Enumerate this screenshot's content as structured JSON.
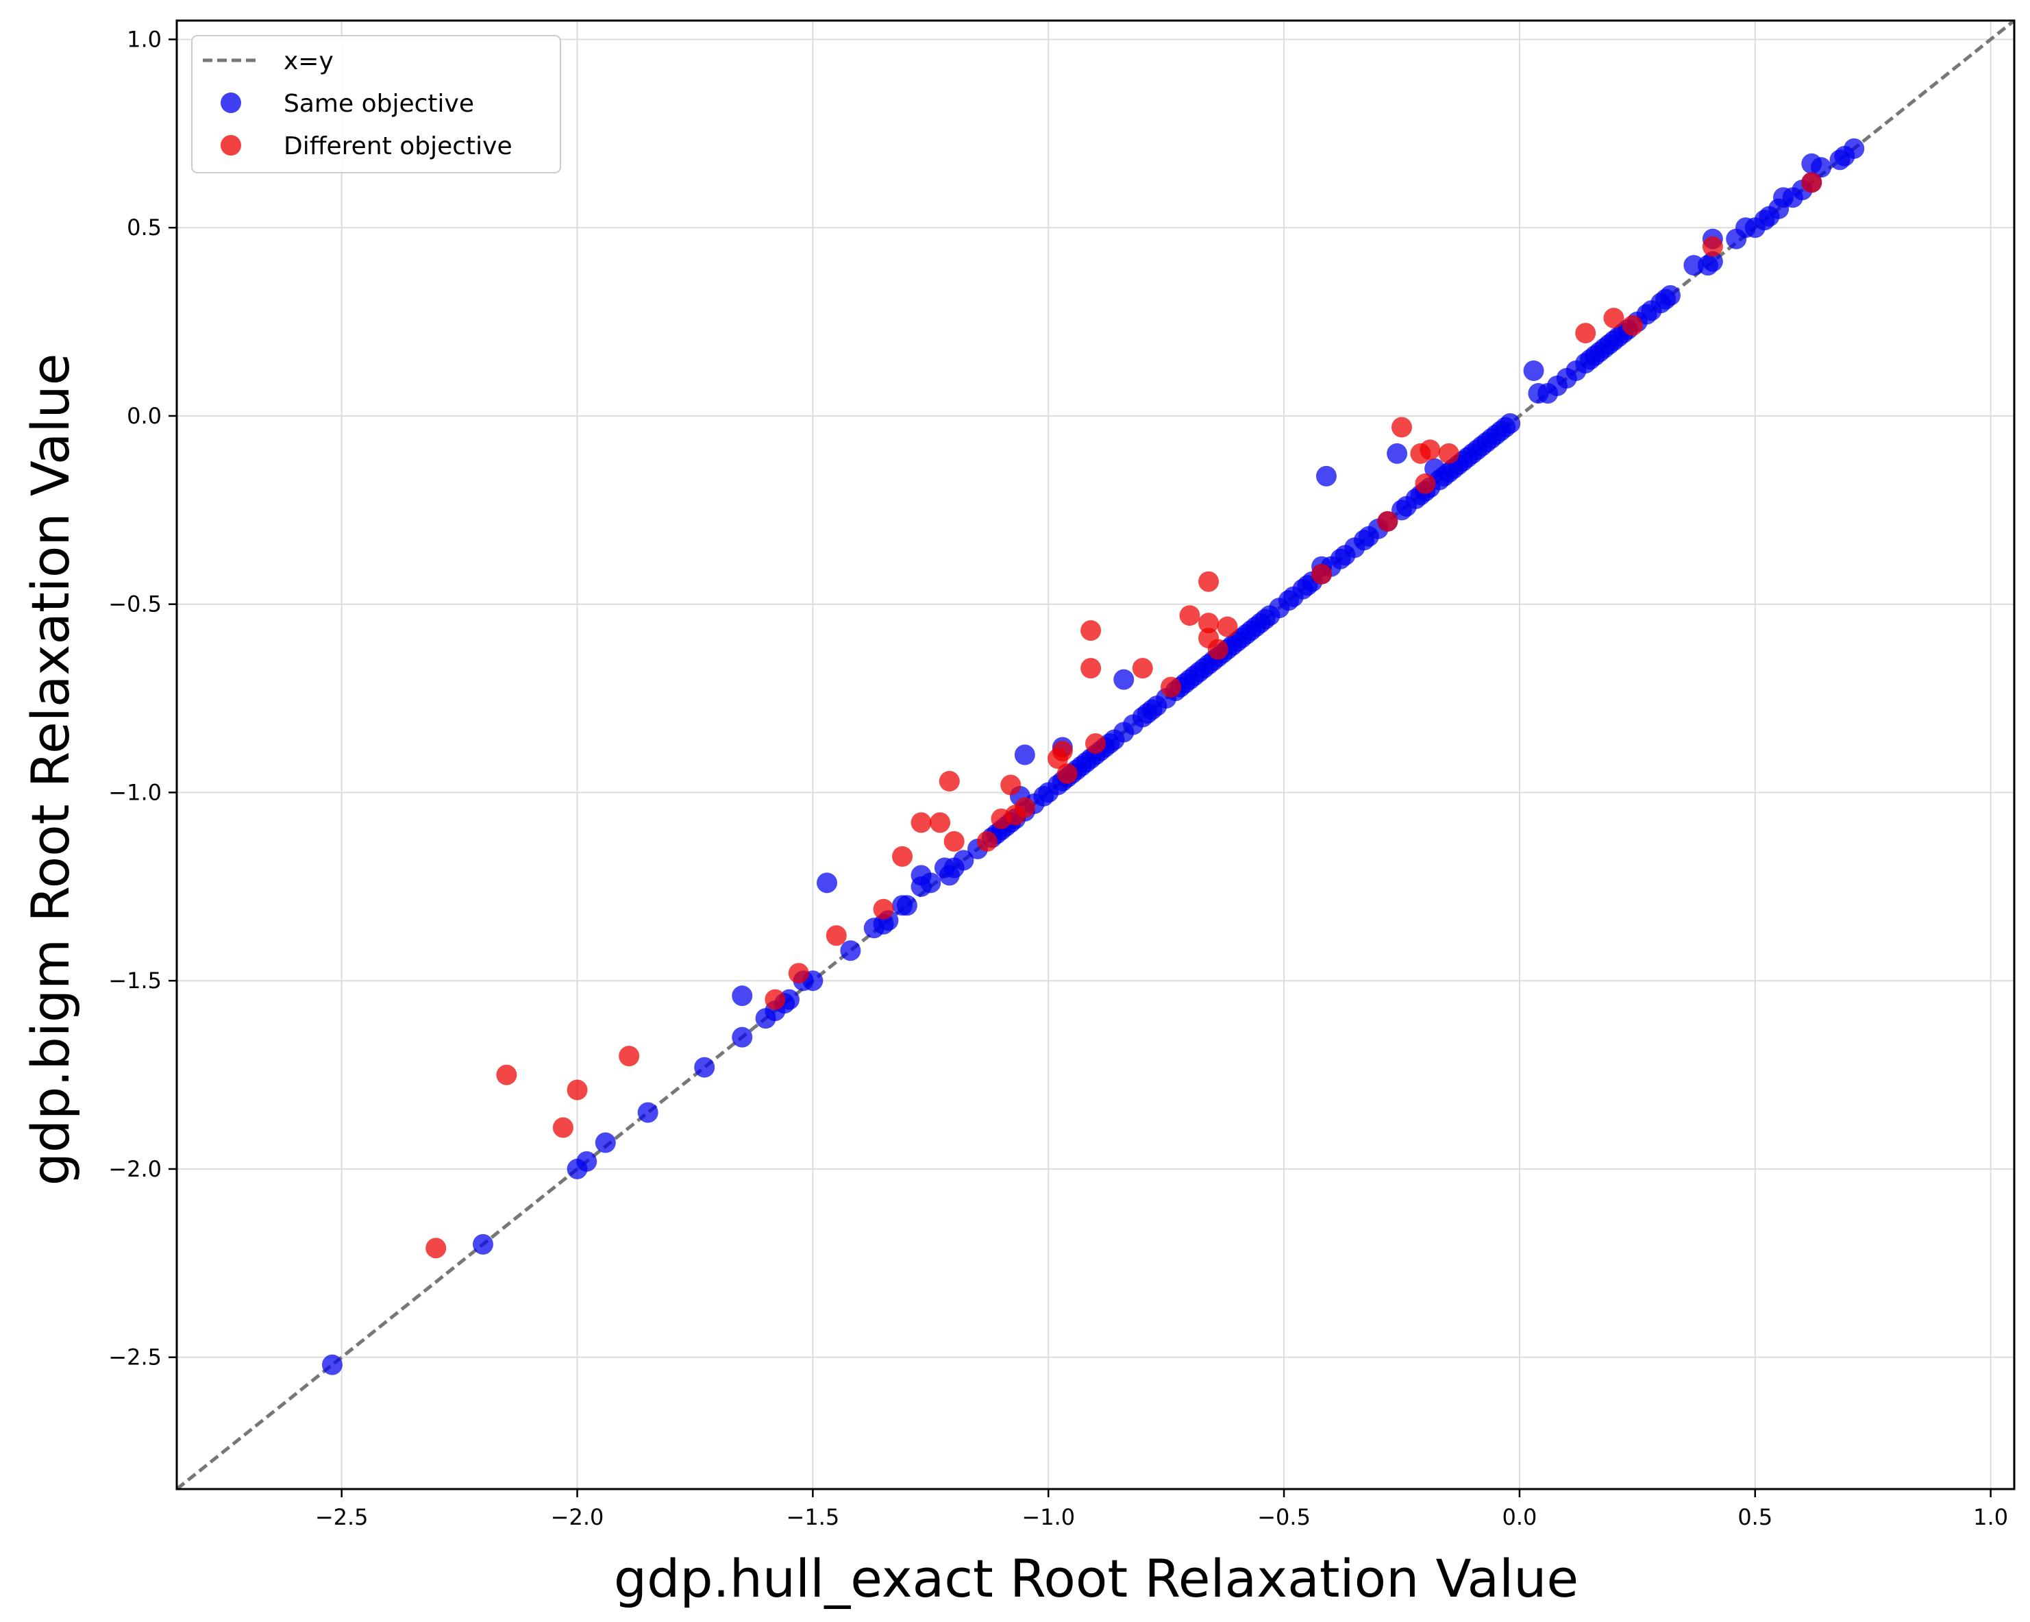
{
  "chart_data": {
    "type": "scatter",
    "xlabel": "gdp.hull_exact Root Relaxation Value",
    "ylabel": "gdp.bigm Root Relaxation Value",
    "xlim": [
      -2.85,
      1.05
    ],
    "ylim": [
      -2.85,
      1.05
    ],
    "xticks": [
      -2.5,
      -2.0,
      -1.5,
      -1.0,
      -0.5,
      0.0,
      0.5,
      1.0
    ],
    "yticks": [
      -2.5,
      -2.0,
      -1.5,
      -1.0,
      -0.5,
      0.0,
      0.5,
      1.0
    ],
    "xtick_labels": [
      "−2.5",
      "−2.0",
      "−1.5",
      "−1.0",
      "−0.5",
      "0.0",
      "0.5",
      "1.0"
    ],
    "ytick_labels": [
      "−2.5",
      "−2.0",
      "−1.5",
      "−1.0",
      "−0.5",
      "0.0",
      "0.5",
      "1.0"
    ],
    "grid": true,
    "legend_position": "top-left",
    "reference_line": {
      "name": "x=y",
      "style": "dashed",
      "color": "#777777"
    },
    "series": [
      {
        "name": "Same objective",
        "color": "#0000ee",
        "points": [
          [
            -2.52,
            -2.52
          ],
          [
            -2.2,
            -2.2
          ],
          [
            -2.0,
            -2.0
          ],
          [
            -1.98,
            -1.98
          ],
          [
            -1.94,
            -1.93
          ],
          [
            -1.85,
            -1.85
          ],
          [
            -1.73,
            -1.73
          ],
          [
            -1.65,
            -1.54
          ],
          [
            -1.65,
            -1.65
          ],
          [
            -1.6,
            -1.6
          ],
          [
            -1.58,
            -1.58
          ],
          [
            -1.56,
            -1.56
          ],
          [
            -1.55,
            -1.55
          ],
          [
            -1.52,
            -1.5
          ],
          [
            -1.5,
            -1.5
          ],
          [
            -1.47,
            -1.24
          ],
          [
            -1.42,
            -1.42
          ],
          [
            -1.37,
            -1.36
          ],
          [
            -1.35,
            -1.35
          ],
          [
            -1.34,
            -1.34
          ],
          [
            -1.31,
            -1.3
          ],
          [
            -1.3,
            -1.3
          ],
          [
            -1.27,
            -1.25
          ],
          [
            -1.27,
            -1.22
          ],
          [
            -1.25,
            -1.24
          ],
          [
            -1.22,
            -1.2
          ],
          [
            -1.21,
            -1.22
          ],
          [
            -1.2,
            -1.2
          ],
          [
            -1.18,
            -1.18
          ],
          [
            -1.15,
            -1.15
          ],
          [
            -1.12,
            -1.12
          ],
          [
            -1.11,
            -1.11
          ],
          [
            -1.1,
            -1.1
          ],
          [
            -1.09,
            -1.09
          ],
          [
            -1.08,
            -1.08
          ],
          [
            -1.07,
            -1.07
          ],
          [
            -1.06,
            -1.01
          ],
          [
            -1.05,
            -1.05
          ],
          [
            -1.05,
            -0.9
          ],
          [
            -1.03,
            -1.03
          ],
          [
            -1.01,
            -1.01
          ],
          [
            -1.0,
            -1.0
          ],
          [
            -0.98,
            -0.98
          ],
          [
            -0.97,
            -0.97
          ],
          [
            -0.97,
            -0.88
          ],
          [
            -0.96,
            -0.96
          ],
          [
            -0.95,
            -0.95
          ],
          [
            -0.94,
            -0.94
          ],
          [
            -0.93,
            -0.93
          ],
          [
            -0.92,
            -0.92
          ],
          [
            -0.91,
            -0.91
          ],
          [
            -0.9,
            -0.9
          ],
          [
            -0.89,
            -0.89
          ],
          [
            -0.88,
            -0.88
          ],
          [
            -0.87,
            -0.87
          ],
          [
            -0.86,
            -0.86
          ],
          [
            -0.84,
            -0.84
          ],
          [
            -0.84,
            -0.7
          ],
          [
            -0.82,
            -0.82
          ],
          [
            -0.8,
            -0.8
          ],
          [
            -0.79,
            -0.79
          ],
          [
            -0.78,
            -0.78
          ],
          [
            -0.77,
            -0.77
          ],
          [
            -0.75,
            -0.75
          ],
          [
            -0.73,
            -0.73
          ],
          [
            -0.72,
            -0.72
          ],
          [
            -0.71,
            -0.71
          ],
          [
            -0.7,
            -0.7
          ],
          [
            -0.69,
            -0.69
          ],
          [
            -0.68,
            -0.68
          ],
          [
            -0.67,
            -0.67
          ],
          [
            -0.66,
            -0.66
          ],
          [
            -0.65,
            -0.65
          ],
          [
            -0.64,
            -0.64
          ],
          [
            -0.63,
            -0.63
          ],
          [
            -0.62,
            -0.62
          ],
          [
            -0.61,
            -0.61
          ],
          [
            -0.6,
            -0.6
          ],
          [
            -0.59,
            -0.59
          ],
          [
            -0.58,
            -0.58
          ],
          [
            -0.57,
            -0.57
          ],
          [
            -0.56,
            -0.56
          ],
          [
            -0.55,
            -0.55
          ],
          [
            -0.54,
            -0.54
          ],
          [
            -0.53,
            -0.53
          ],
          [
            -0.51,
            -0.51
          ],
          [
            -0.49,
            -0.49
          ],
          [
            -0.48,
            -0.48
          ],
          [
            -0.46,
            -0.46
          ],
          [
            -0.45,
            -0.45
          ],
          [
            -0.44,
            -0.44
          ],
          [
            -0.42,
            -0.4
          ],
          [
            -0.42,
            -0.42
          ],
          [
            -0.41,
            -0.16
          ],
          [
            -0.4,
            -0.4
          ],
          [
            -0.38,
            -0.38
          ],
          [
            -0.37,
            -0.37
          ],
          [
            -0.35,
            -0.35
          ],
          [
            -0.33,
            -0.33
          ],
          [
            -0.32,
            -0.32
          ],
          [
            -0.3,
            -0.3
          ],
          [
            -0.28,
            -0.28
          ],
          [
            -0.26,
            -0.1
          ],
          [
            -0.25,
            -0.25
          ],
          [
            -0.24,
            -0.24
          ],
          [
            -0.22,
            -0.22
          ],
          [
            -0.21,
            -0.21
          ],
          [
            -0.2,
            -0.2
          ],
          [
            -0.19,
            -0.19
          ],
          [
            -0.18,
            -0.14
          ],
          [
            -0.17,
            -0.17
          ],
          [
            -0.16,
            -0.16
          ],
          [
            -0.15,
            -0.15
          ],
          [
            -0.14,
            -0.14
          ],
          [
            -0.13,
            -0.13
          ],
          [
            -0.12,
            -0.12
          ],
          [
            -0.11,
            -0.11
          ],
          [
            -0.1,
            -0.1
          ],
          [
            -0.09,
            -0.09
          ],
          [
            -0.08,
            -0.08
          ],
          [
            -0.07,
            -0.07
          ],
          [
            -0.06,
            -0.06
          ],
          [
            -0.05,
            -0.05
          ],
          [
            -0.04,
            -0.04
          ],
          [
            -0.03,
            -0.03
          ],
          [
            -0.02,
            -0.02
          ],
          [
            0.03,
            0.12
          ],
          [
            0.04,
            0.06
          ],
          [
            0.06,
            0.06
          ],
          [
            0.08,
            0.08
          ],
          [
            0.1,
            0.1
          ],
          [
            0.12,
            0.12
          ],
          [
            0.14,
            0.14
          ],
          [
            0.15,
            0.15
          ],
          [
            0.16,
            0.16
          ],
          [
            0.17,
            0.17
          ],
          [
            0.18,
            0.18
          ],
          [
            0.19,
            0.19
          ],
          [
            0.2,
            0.2
          ],
          [
            0.21,
            0.21
          ],
          [
            0.22,
            0.22
          ],
          [
            0.23,
            0.23
          ],
          [
            0.25,
            0.25
          ],
          [
            0.27,
            0.27
          ],
          [
            0.28,
            0.28
          ],
          [
            0.3,
            0.3
          ],
          [
            0.31,
            0.31
          ],
          [
            0.32,
            0.32
          ],
          [
            0.37,
            0.4
          ],
          [
            0.4,
            0.4
          ],
          [
            0.41,
            0.41
          ],
          [
            0.41,
            0.47
          ],
          [
            0.46,
            0.47
          ],
          [
            0.48,
            0.5
          ],
          [
            0.5,
            0.5
          ],
          [
            0.52,
            0.52
          ],
          [
            0.53,
            0.53
          ],
          [
            0.55,
            0.55
          ],
          [
            0.56,
            0.58
          ],
          [
            0.58,
            0.58
          ],
          [
            0.6,
            0.6
          ],
          [
            0.62,
            0.62
          ],
          [
            0.62,
            0.67
          ],
          [
            0.64,
            0.66
          ],
          [
            0.68,
            0.68
          ],
          [
            0.69,
            0.69
          ],
          [
            0.71,
            0.71
          ]
        ]
      },
      {
        "name": "Different objective",
        "color": "#ee0000",
        "points": [
          [
            -2.3,
            -2.21
          ],
          [
            -2.15,
            -1.75
          ],
          [
            -2.03,
            -1.89
          ],
          [
            -2.0,
            -1.79
          ],
          [
            -1.89,
            -1.7
          ],
          [
            -1.58,
            -1.55
          ],
          [
            -1.53,
            -1.48
          ],
          [
            -1.45,
            -1.38
          ],
          [
            -1.35,
            -1.31
          ],
          [
            -1.31,
            -1.17
          ],
          [
            -1.27,
            -1.08
          ],
          [
            -1.23,
            -1.08
          ],
          [
            -1.21,
            -0.97
          ],
          [
            -1.2,
            -1.13
          ],
          [
            -1.13,
            -1.13
          ],
          [
            -1.1,
            -1.07
          ],
          [
            -1.08,
            -0.98
          ],
          [
            -1.07,
            -1.06
          ],
          [
            -1.05,
            -1.04
          ],
          [
            -0.98,
            -0.91
          ],
          [
            -0.97,
            -0.89
          ],
          [
            -0.96,
            -0.95
          ],
          [
            -0.91,
            -0.57
          ],
          [
            -0.91,
            -0.67
          ],
          [
            -0.9,
            -0.87
          ],
          [
            -0.8,
            -0.67
          ],
          [
            -0.74,
            -0.72
          ],
          [
            -0.7,
            -0.53
          ],
          [
            -0.66,
            -0.44
          ],
          [
            -0.66,
            -0.55
          ],
          [
            -0.66,
            -0.59
          ],
          [
            -0.64,
            -0.62
          ],
          [
            -0.62,
            -0.56
          ],
          [
            -0.42,
            -0.42
          ],
          [
            -0.28,
            -0.28
          ],
          [
            -0.25,
            -0.03
          ],
          [
            -0.21,
            -0.1
          ],
          [
            -0.19,
            -0.09
          ],
          [
            -0.2,
            -0.18
          ],
          [
            -0.15,
            -0.1
          ],
          [
            0.14,
            0.22
          ],
          [
            0.2,
            0.26
          ],
          [
            0.24,
            0.24
          ],
          [
            0.41,
            0.45
          ],
          [
            0.62,
            0.62
          ]
        ]
      }
    ]
  }
}
